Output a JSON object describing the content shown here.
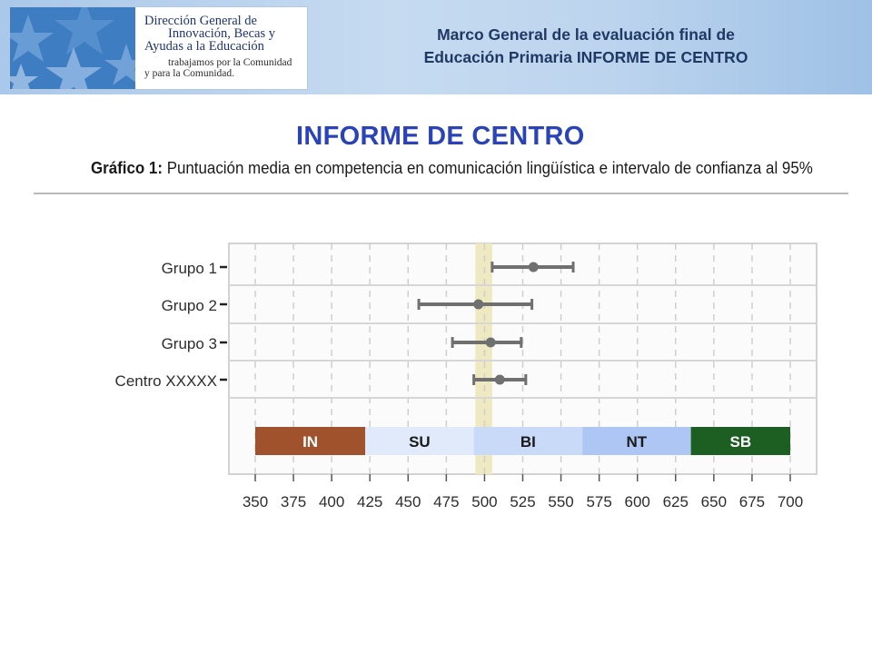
{
  "header": {
    "logo": {
      "lines": [
        "Dirección General de",
        "Innovación, Becas y",
        "Ayudas a la Educación"
      ],
      "tagline": [
        "trabajamos por la Comunidad",
        "y para la Comunidad."
      ],
      "icon": "star-pattern-icon"
    },
    "title_line1": "Marco General de la evaluación final de",
    "title_line2": "Educación Primaria INFORME DE CENTRO"
  },
  "page_title": "INFORME DE CENTRO",
  "chart_title": {
    "prefix": "Gráfico 1:",
    "text": " Puntuación media en competencia en comunicación lingüística e intervalo de confianza al 95%"
  },
  "chart_data": {
    "type": "errorbar",
    "title": "Gráfico 1: Puntuación media en competencia en comunicación lingüística e intervalo de confianza al 95%",
    "xlabel": "",
    "ylabel": "",
    "xlim": [
      350,
      700
    ],
    "xticks": [
      350,
      375,
      400,
      425,
      450,
      475,
      500,
      525,
      550,
      575,
      600,
      625,
      650,
      675,
      700
    ],
    "grid": true,
    "series": [
      {
        "category": "Grupo 1",
        "mean": 532,
        "low": 505,
        "high": 558
      },
      {
        "category": "Grupo 2",
        "mean": 496,
        "low": 457,
        "high": 531
      },
      {
        "category": "Grupo 3",
        "mean": 504,
        "low": 479,
        "high": 524
      },
      {
        "category": "Centro XXXXX",
        "mean": 510,
        "low": 493,
        "high": 527
      }
    ],
    "reference_band": {
      "from": 494,
      "to": 505,
      "color": "#eee9c1"
    },
    "levels": [
      {
        "label": "IN",
        "from": 350,
        "to": 422,
        "color": "#a0522d",
        "text_color": "#ffffff"
      },
      {
        "label": "SU",
        "from": 422,
        "to": 493,
        "color": "#e1eafb",
        "text_color": "#1a1a1a"
      },
      {
        "label": "BI",
        "from": 493,
        "to": 564,
        "color": "#c9daf8",
        "text_color": "#1a1a1a"
      },
      {
        "label": "NT",
        "from": 564,
        "to": 635,
        "color": "#aec6f4",
        "text_color": "#1a1a1a"
      },
      {
        "label": "SB",
        "from": 635,
        "to": 700,
        "color": "#1d5e22",
        "text_color": "#ffffff"
      }
    ],
    "colors": {
      "point": "#707070",
      "panel": "#fbfbfb",
      "grid": "#cfcfcf"
    }
  }
}
